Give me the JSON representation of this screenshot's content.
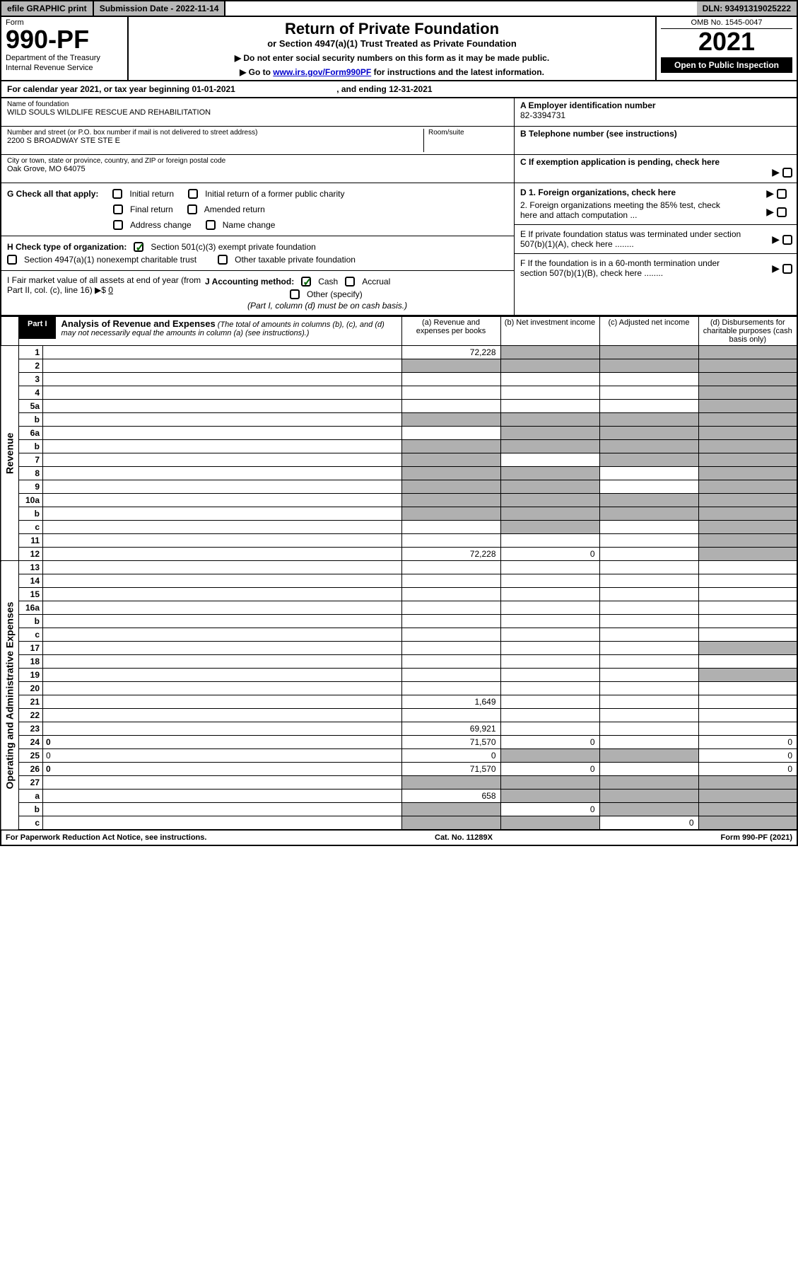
{
  "top_bar": {
    "efile": "efile GRAPHIC print",
    "submission": "Submission Date - 2022-11-14",
    "dln": "DLN: 93491319025222"
  },
  "header": {
    "form_label": "Form",
    "form_number": "990-PF",
    "dept1": "Department of the Treasury",
    "dept2": "Internal Revenue Service",
    "title": "Return of Private Foundation",
    "subtitle": "or Section 4947(a)(1) Trust Treated as Private Foundation",
    "instr1": "▶ Do not enter social security numbers on this form as it may be made public.",
    "instr2_pre": "▶ Go to ",
    "instr2_link": "www.irs.gov/Form990PF",
    "instr2_post": " for instructions and the latest information.",
    "omb": "OMB No. 1545-0047",
    "year": "2021",
    "open_public": "Open to Public Inspection"
  },
  "calendar": {
    "text_pre": "For calendar year 2021, or tax year beginning ",
    "begin": "01-01-2021",
    "text_mid": " , and ending ",
    "end": "12-31-2021"
  },
  "info": {
    "name_label": "Name of foundation",
    "name_value": "WILD SOULS WILDLIFE RESCUE AND REHABILITATION",
    "addr_label": "Number and street (or P.O. box number if mail is not delivered to street address)",
    "addr_value": "2200 S BROADWAY STE STE E",
    "room_label": "Room/suite",
    "city_label": "City or town, state or province, country, and ZIP or foreign postal code",
    "city_value": "Oak Grove, MO  64075",
    "a_label": "A Employer identification number",
    "a_value": "82-3394731",
    "b_label": "B Telephone number (see instructions)",
    "c_label": "C If exemption application is pending, check here"
  },
  "section_g": {
    "prefix": "G Check all that apply:",
    "opts": [
      "Initial return",
      "Initial return of a former public charity",
      "Final return",
      "Amended return",
      "Address change",
      "Name change"
    ]
  },
  "section_h": {
    "prefix": "H Check type of organization:",
    "opt1": "Section 501(c)(3) exempt private foundation",
    "opt2": "Section 4947(a)(1) nonexempt charitable trust",
    "opt3": "Other taxable private foundation"
  },
  "section_i": {
    "text": "I Fair market value of all assets at end of year (from Part II, col. (c), line 16) ▶$ ",
    "value": "0"
  },
  "section_j": {
    "prefix": "J Accounting method:",
    "cash": "Cash",
    "accrual": "Accrual",
    "other": "Other (specify)",
    "note": "(Part I, column (d) must be on cash basis.)"
  },
  "section_d": {
    "d1": "D 1. Foreign organizations, check here",
    "d2": "2. Foreign organizations meeting the 85% test, check here and attach computation ..."
  },
  "section_e": "E  If private foundation status was terminated under section 507(b)(1)(A), check here ........",
  "section_f": "F  If the foundation is in a 60-month termination under section 507(b)(1)(B), check here ........",
  "part1": {
    "label": "Part I",
    "title_bold": "Analysis of Revenue and Expenses",
    "title_rest": " (The total of amounts in columns (b), (c), and (d) may not necessarily equal the amounts in column (a) (see instructions).)",
    "col_a": "(a) Revenue and expenses per books",
    "col_b": "(b) Net investment income",
    "col_c": "(c) Adjusted net income",
    "col_d": "(d) Disbursements for charitable purposes (cash basis only)"
  },
  "vert": {
    "revenue": "Revenue",
    "expenses": "Operating and Administrative Expenses"
  },
  "rows": [
    {
      "n": "1",
      "d": "",
      "a": "72,228",
      "b": "",
      "c": "",
      "shade_b": true,
      "shade_c": true,
      "shade_d": true
    },
    {
      "n": "2",
      "d": "",
      "a": "",
      "b": "",
      "c": "",
      "shade_a": true,
      "shade_b": true,
      "shade_c": true,
      "shade_d": true
    },
    {
      "n": "3",
      "d": "",
      "a": "",
      "b": "",
      "c": "",
      "shade_d": true
    },
    {
      "n": "4",
      "d": "",
      "a": "",
      "b": "",
      "c": "",
      "shade_d": true
    },
    {
      "n": "5a",
      "d": "",
      "a": "",
      "b": "",
      "c": "",
      "shade_d": true
    },
    {
      "n": "b",
      "d": "",
      "a": "",
      "b": "",
      "c": "",
      "shade_a": true,
      "shade_b": true,
      "shade_c": true,
      "shade_d": true
    },
    {
      "n": "6a",
      "d": "",
      "a": "",
      "b": "",
      "c": "",
      "shade_b": true,
      "shade_c": true,
      "shade_d": true
    },
    {
      "n": "b",
      "d": "",
      "a": "",
      "b": "",
      "c": "",
      "shade_a": true,
      "shade_b": true,
      "shade_c": true,
      "shade_d": true
    },
    {
      "n": "7",
      "d": "",
      "a": "",
      "b": "",
      "c": "",
      "shade_a": true,
      "shade_c": true,
      "shade_d": true
    },
    {
      "n": "8",
      "d": "",
      "a": "",
      "b": "",
      "c": "",
      "shade_a": true,
      "shade_b": true,
      "shade_d": true
    },
    {
      "n": "9",
      "d": "",
      "a": "",
      "b": "",
      "c": "",
      "shade_a": true,
      "shade_b": true,
      "shade_d": true
    },
    {
      "n": "10a",
      "d": "",
      "a": "",
      "b": "",
      "c": "",
      "shade_a": true,
      "shade_b": true,
      "shade_c": true,
      "shade_d": true
    },
    {
      "n": "b",
      "d": "",
      "a": "",
      "b": "",
      "c": "",
      "shade_a": true,
      "shade_b": true,
      "shade_c": true,
      "shade_d": true
    },
    {
      "n": "c",
      "d": "",
      "a": "",
      "b": "",
      "c": "",
      "shade_b": true,
      "shade_d": true
    },
    {
      "n": "11",
      "d": "",
      "a": "",
      "b": "",
      "c": "",
      "shade_d": true
    },
    {
      "n": "12",
      "d": "",
      "a": "72,228",
      "b": "0",
      "c": "",
      "bold": true,
      "shade_d": true
    },
    {
      "n": "13",
      "d": "",
      "a": "",
      "b": "",
      "c": ""
    },
    {
      "n": "14",
      "d": "",
      "a": "",
      "b": "",
      "c": ""
    },
    {
      "n": "15",
      "d": "",
      "a": "",
      "b": "",
      "c": ""
    },
    {
      "n": "16a",
      "d": "",
      "a": "",
      "b": "",
      "c": ""
    },
    {
      "n": "b",
      "d": "",
      "a": "",
      "b": "",
      "c": ""
    },
    {
      "n": "c",
      "d": "",
      "a": "",
      "b": "",
      "c": ""
    },
    {
      "n": "17",
      "d": "",
      "a": "",
      "b": "",
      "c": "",
      "shade_d": true
    },
    {
      "n": "18",
      "d": "",
      "a": "",
      "b": "",
      "c": ""
    },
    {
      "n": "19",
      "d": "",
      "a": "",
      "b": "",
      "c": "",
      "shade_d": true
    },
    {
      "n": "20",
      "d": "",
      "a": "",
      "b": "",
      "c": ""
    },
    {
      "n": "21",
      "d": "",
      "a": "1,649",
      "b": "",
      "c": ""
    },
    {
      "n": "22",
      "d": "",
      "a": "",
      "b": "",
      "c": ""
    },
    {
      "n": "23",
      "d": "",
      "a": "69,921",
      "b": "",
      "c": ""
    },
    {
      "n": "24",
      "d": "0",
      "a": "71,570",
      "b": "0",
      "c": "",
      "bold": true
    },
    {
      "n": "25",
      "d": "0",
      "a": "0",
      "b": "",
      "c": "",
      "shade_b": true,
      "shade_c": true
    },
    {
      "n": "26",
      "d": "0",
      "a": "71,570",
      "b": "0",
      "c": "",
      "bold": true
    },
    {
      "n": "27",
      "d": "",
      "a": "",
      "b": "",
      "c": "",
      "shade_a": true,
      "shade_b": true,
      "shade_c": true,
      "shade_d": true
    },
    {
      "n": "a",
      "d": "",
      "a": "658",
      "b": "",
      "c": "",
      "bold": true,
      "shade_b": true,
      "shade_c": true,
      "shade_d": true
    },
    {
      "n": "b",
      "d": "",
      "a": "",
      "b": "0",
      "c": "",
      "bold": true,
      "shade_a": true,
      "shade_c": true,
      "shade_d": true
    },
    {
      "n": "c",
      "d": "",
      "a": "",
      "b": "",
      "c": "0",
      "bold": true,
      "shade_a": true,
      "shade_b": true,
      "shade_d": true
    }
  ],
  "footer": {
    "left": "For Paperwork Reduction Act Notice, see instructions.",
    "center": "Cat. No. 11289X",
    "right": "Form 990-PF (2021)"
  }
}
